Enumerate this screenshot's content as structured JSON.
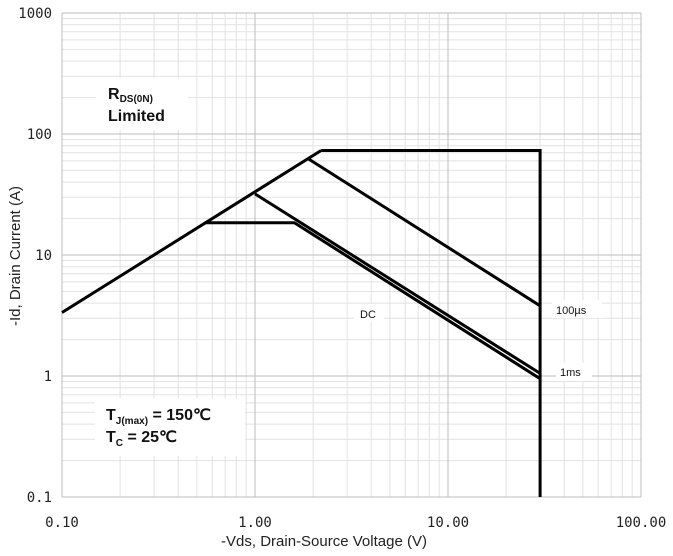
{
  "chart_data": {
    "type": "line",
    "title": "",
    "xlabel": "-Vds, Drain-Source Voltage (V)",
    "ylabel": "-Id, Drain Current (A)",
    "x_scale": "log",
    "y_scale": "log",
    "xlim": [
      0.1,
      100
    ],
    "ylim": [
      0.1,
      1000
    ],
    "grid": true,
    "x_ticks": [
      0.1,
      1,
      10,
      100
    ],
    "x_tick_labels": [
      "0.10",
      "1.00",
      "10.00",
      "100.00"
    ],
    "y_ticks": [
      0.1,
      1,
      10,
      100,
      1000
    ],
    "y_tick_labels": [
      "0.1",
      "1",
      "10",
      "100",
      "1000"
    ],
    "series": [
      {
        "name": "RDS(ON) Limited",
        "x": [
          0.1,
          2.2
        ],
        "y": [
          3.35,
          73
        ]
      },
      {
        "name": "",
        "x": [
          2.2,
          30,
          30
        ],
        "y": [
          73,
          73,
          0.1
        ]
      },
      {
        "name": "100µs",
        "x": [
          1.9,
          30
        ],
        "y": [
          62,
          3.8
        ]
      },
      {
        "name": "1ms",
        "x": [
          1.0,
          30
        ],
        "y": [
          32,
          1.05
        ]
      },
      {
        "name": "DC",
        "x": [
          0.55,
          1.6,
          30
        ],
        "y": [
          18.5,
          18.5,
          0.95
        ]
      }
    ],
    "annotations": {
      "rds": {
        "main": "R",
        "sub": "DS(0N)",
        "line2": "Limited"
      },
      "tj": {
        "main": "T",
        "sub": "J(max)",
        "rest": " = 150℃"
      },
      "tc": {
        "main": "T",
        "sub": "C",
        "rest": " = 25℃"
      },
      "dc": "DC",
      "us100": "100µs",
      "ms1": "1ms"
    }
  }
}
